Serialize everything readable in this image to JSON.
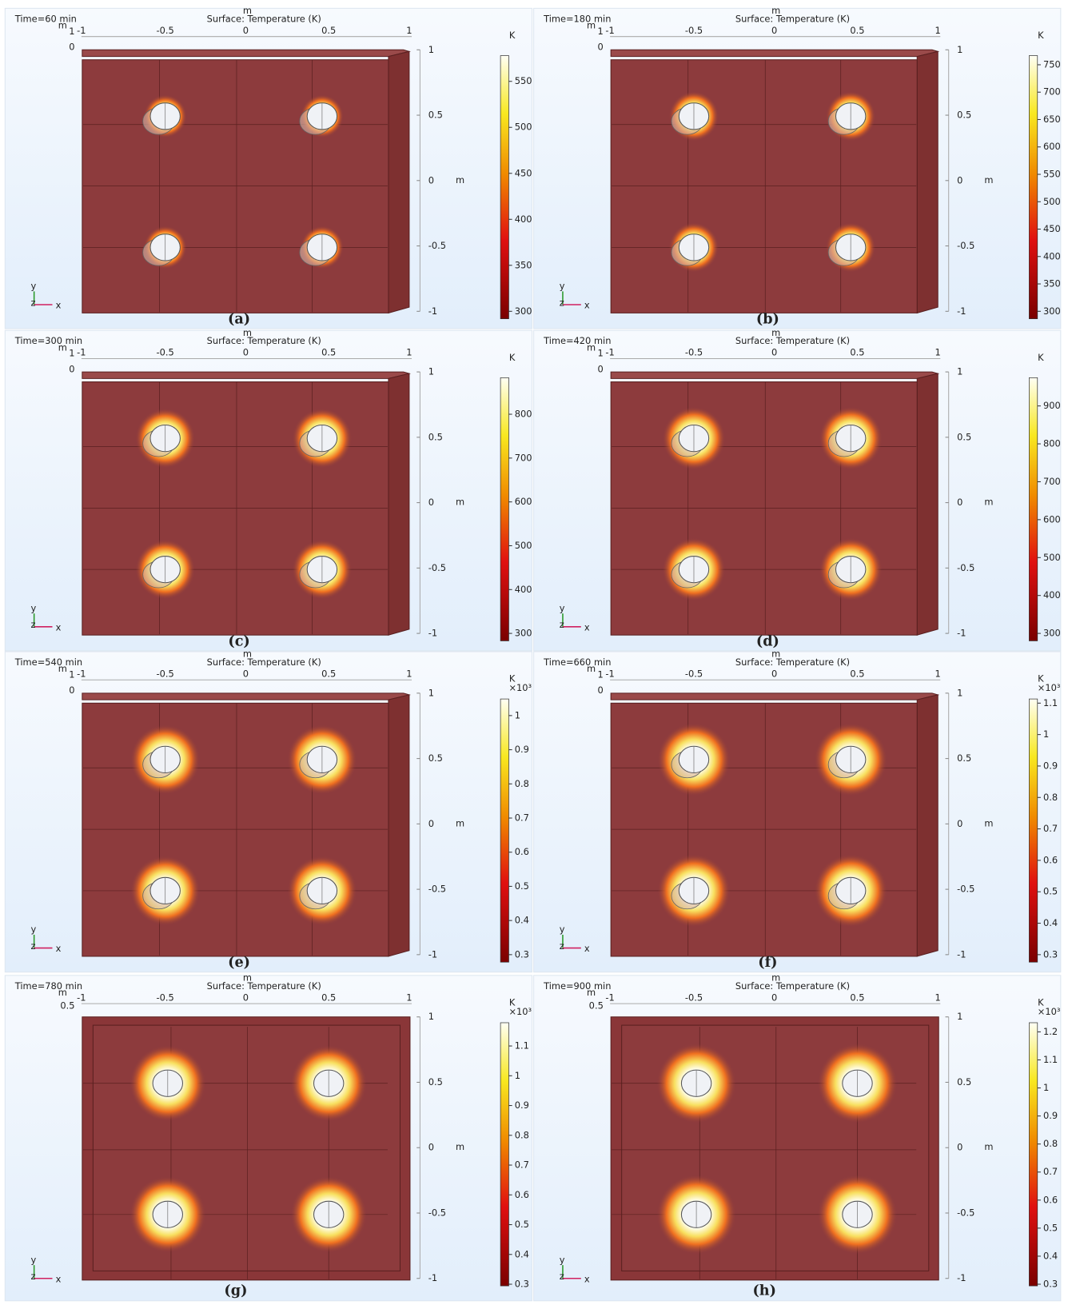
{
  "panels": [
    {
      "time": "Time=60 min",
      "title": "Surface: Temperature (K)",
      "unit_top": "m",
      "unit_right": "m",
      "top_ticks": [
        -1,
        -0.5,
        0,
        0.5,
        1
      ],
      "left_labels": [
        1,
        0
      ],
      "right_ticks": [
        1,
        0.5,
        0,
        -0.5,
        -1
      ],
      "colorbar_unit": "K",
      "colorbar_ticks": [
        300,
        350,
        400,
        450,
        500,
        550
      ],
      "triad": [
        "y",
        "z",
        "x"
      ],
      "caption": "(a)"
    },
    {
      "time": "Time=180 min",
      "title": "Surface: Temperature (K)",
      "unit_top": "m",
      "unit_right": "m",
      "top_ticks": [
        -1,
        -0.5,
        0,
        0.5,
        1
      ],
      "left_labels": [
        1,
        0
      ],
      "right_ticks": [
        1,
        0.5,
        0,
        -0.5,
        -1
      ],
      "colorbar_unit": "K",
      "colorbar_ticks": [
        300,
        350,
        400,
        450,
        500,
        550,
        600,
        650,
        700,
        750
      ],
      "triad": [
        "y",
        "z",
        "x"
      ],
      "caption": "(b)"
    },
    {
      "time": "Time=300 min",
      "title": "Surface: Temperature (K)",
      "unit_top": "m",
      "unit_right": "m",
      "top_ticks": [
        -1,
        -0.5,
        0,
        0.5,
        1
      ],
      "left_labels": [
        1,
        0
      ],
      "right_ticks": [
        1,
        0.5,
        0,
        -0.5,
        -1
      ],
      "colorbar_unit": "K",
      "colorbar_ticks": [
        300,
        400,
        500,
        600,
        700,
        800
      ],
      "triad": [
        "y",
        "z",
        "x"
      ],
      "caption": "(c)"
    },
    {
      "time": "Time=420 min",
      "title": "Surface: Temperature (K)",
      "unit_top": "m",
      "unit_right": "m",
      "top_ticks": [
        -1,
        -0.5,
        0,
        0.5,
        1
      ],
      "left_labels": [
        1,
        0
      ],
      "right_ticks": [
        1,
        0.5,
        0,
        -0.5,
        -1
      ],
      "colorbar_unit": "K",
      "colorbar_ticks": [
        300,
        400,
        500,
        600,
        700,
        800,
        900
      ],
      "triad": [
        "y",
        "z",
        "x"
      ],
      "caption": "(d)"
    },
    {
      "time": "Time=540 min",
      "title": "Surface: Temperature (K)",
      "unit_top": "m",
      "unit_right": "m",
      "top_ticks": [
        -1,
        -0.5,
        0,
        0.5,
        1
      ],
      "left_labels": [
        1,
        0
      ],
      "right_ticks": [
        1,
        0.5,
        0,
        -0.5,
        -1
      ],
      "colorbar_unit": "K",
      "colorbar_scale": "×10³",
      "colorbar_ticks": [
        0.3,
        0.4,
        0.5,
        0.6,
        0.7,
        0.8,
        0.9,
        1
      ],
      "triad": [
        "y",
        "z",
        "x"
      ],
      "caption": "(e)"
    },
    {
      "time": "Time=660 min",
      "title": "Surface: Temperature (K)",
      "unit_top": "m",
      "unit_right": "m",
      "top_ticks": [
        -1,
        -0.5,
        0,
        0.5,
        1
      ],
      "left_labels": [
        1,
        0
      ],
      "right_ticks": [
        1,
        0.5,
        0,
        -0.5,
        -1
      ],
      "colorbar_unit": "K",
      "colorbar_scale": "×10³",
      "colorbar_ticks": [
        0.3,
        0.4,
        0.5,
        0.6,
        0.7,
        0.8,
        0.9,
        1,
        1.1
      ],
      "triad": [
        "y",
        "z",
        "x"
      ],
      "caption": "(f)"
    },
    {
      "time": "Time=780 min",
      "title": "Surface: Temperature (K)",
      "unit_top": "m",
      "unit_right": "m",
      "top_ticks": [
        -1,
        -0.5,
        0,
        0.5,
        1
      ],
      "left_labels": [
        0.5
      ],
      "right_ticks": [
        1,
        0.5,
        0,
        -0.5,
        -1
      ],
      "colorbar_unit": "K",
      "colorbar_scale": "×10³",
      "colorbar_ticks": [
        0.3,
        0.4,
        0.5,
        0.6,
        0.7,
        0.8,
        0.9,
        1,
        1.1
      ],
      "triad": [
        "y",
        "z",
        "x"
      ],
      "caption": "(g)"
    },
    {
      "time": "Time=900 min",
      "title": "Surface: Temperature (K)",
      "unit_top": "m",
      "unit_right": "m",
      "top_ticks": [
        -1,
        -0.5,
        0,
        0.5,
        1
      ],
      "left_labels": [
        0.5
      ],
      "right_ticks": [
        1,
        0.5,
        0,
        -0.5,
        -1
      ],
      "colorbar_unit": "K",
      "colorbar_scale": "×10³",
      "colorbar_ticks": [
        0.3,
        0.4,
        0.5,
        0.6,
        0.7,
        0.8,
        0.9,
        1,
        1.1,
        1.2
      ],
      "triad": [
        "y",
        "z",
        "x"
      ],
      "caption": "(h)"
    }
  ]
}
